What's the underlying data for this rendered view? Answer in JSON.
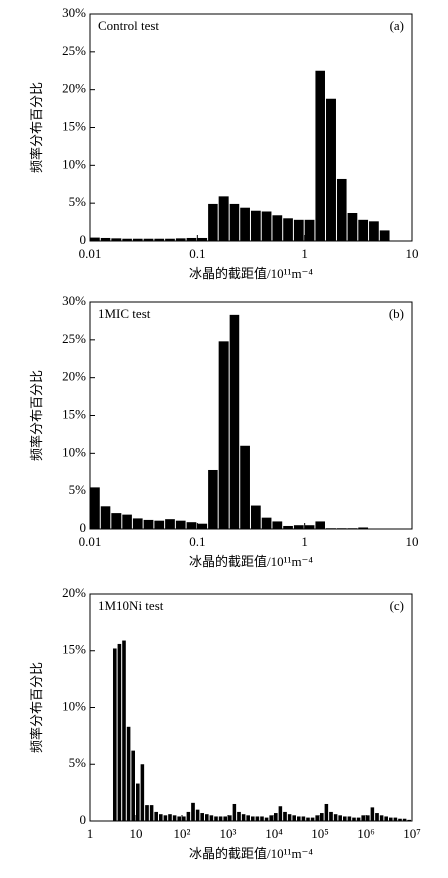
{
  "chart_data": [
    {
      "type": "histogram",
      "title": "Control test",
      "panel": "(a)",
      "xlabel": "冰晶的截距值/10¹¹m⁻⁴",
      "ylabel": "频率分布百分比",
      "color": "#000000",
      "xscale": "log",
      "bins": [
        0.01,
        0.0126,
        0.0158,
        0.02,
        0.0251,
        0.0316,
        0.0398,
        0.0501,
        0.0631,
        0.0794,
        0.1,
        0.126,
        0.158,
        0.2,
        0.251,
        0.316,
        0.398,
        0.501,
        0.631,
        0.794,
        1,
        1.26,
        1.58,
        2,
        2.51,
        3.16,
        3.98,
        5.01,
        6.31,
        7.94,
        10
      ],
      "values": [
        0.45,
        0.4,
        0.35,
        0.3,
        0.3,
        0.3,
        0.3,
        0.3,
        0.35,
        0.4,
        0.4,
        4.9,
        5.9,
        4.9,
        4.4,
        4.0,
        3.9,
        3.4,
        3.0,
        2.8,
        2.8,
        22.5,
        18.8,
        8.2,
        3.7,
        2.8,
        2.6,
        1.4,
        0,
        0
      ],
      "xlim": [
        0.01,
        10
      ],
      "xticks": [
        0.01,
        0.1,
        1,
        10
      ],
      "ylim": [
        0,
        30
      ],
      "yticks": [
        {
          "value": 0,
          "label": "0"
        },
        {
          "value": 5,
          "label": "5%"
        },
        {
          "value": 10,
          "label": "10%"
        },
        {
          "value": 15,
          "label": "15%"
        },
        {
          "value": 20,
          "label": "20%"
        },
        {
          "value": 25,
          "label": "25%"
        },
        {
          "value": 30,
          "label": "30%"
        }
      ]
    },
    {
      "type": "histogram",
      "title": "1MIC test",
      "panel": "(b)",
      "xlabel": "冰晶的截距值/10¹¹m⁻⁴",
      "ylabel": "频率分布百分比",
      "color": "#000000",
      "xscale": "log",
      "bins": [
        0.01,
        0.0126,
        0.0158,
        0.02,
        0.0251,
        0.0316,
        0.0398,
        0.0501,
        0.0631,
        0.0794,
        0.1,
        0.126,
        0.158,
        0.2,
        0.251,
        0.316,
        0.398,
        0.501,
        0.631,
        0.794,
        1,
        1.26,
        1.58,
        2,
        2.51,
        3.16,
        3.98,
        5.01,
        6.31,
        7.94,
        10
      ],
      "values": [
        5.5,
        3.0,
        2.1,
        1.9,
        1.4,
        1.2,
        1.1,
        1.3,
        1.1,
        0.9,
        0.7,
        7.8,
        24.8,
        28.3,
        11.0,
        3.1,
        1.5,
        1.0,
        0.4,
        0.5,
        0.5,
        1.0,
        0.1,
        0.1,
        0.1,
        0.2,
        0,
        0,
        0,
        0
      ],
      "xlim": [
        0.01,
        10
      ],
      "xticks": [
        0.01,
        0.1,
        1,
        10
      ],
      "ylim": [
        0,
        30
      ],
      "yticks": [
        {
          "value": 0,
          "label": "0"
        },
        {
          "value": 5,
          "label": "5%"
        },
        {
          "value": 10,
          "label": "10%"
        },
        {
          "value": 15,
          "label": "15%"
        },
        {
          "value": 20,
          "label": "20%"
        },
        {
          "value": 25,
          "label": "25%"
        },
        {
          "value": 30,
          "label": "30%"
        }
      ]
    },
    {
      "type": "histogram",
      "title": "1M10Ni test",
      "panel": "(c)",
      "xlabel": "冰晶的截距值/10¹¹m⁻⁴",
      "ylabel": "频率分布百分比",
      "color": "#000000",
      "xscale": "log",
      "bins": [
        1,
        1.26,
        1.58,
        2,
        2.51,
        3.16,
        3.98,
        5.01,
        6.31,
        7.94,
        10,
        12.6,
        15.8,
        20,
        25.1,
        31.6,
        39.8,
        50.1,
        63.1,
        79.4,
        100,
        126,
        158,
        200,
        251,
        316,
        398,
        501,
        631,
        794,
        1000,
        1260,
        1580,
        2000,
        2510,
        3160,
        3980,
        5010,
        6310,
        7940,
        10000,
        12600,
        15800,
        20000,
        25100,
        31600,
        39800,
        50100,
        63100,
        79400,
        100000,
        126000,
        158000,
        200000,
        251000,
        316000,
        398000,
        501000,
        631000,
        794000,
        1000000,
        1260000,
        1580000,
        2000000,
        2510000,
        3160000,
        3980000,
        5010000,
        6310000,
        7940000,
        10000000
      ],
      "values": [
        0,
        0,
        0,
        0,
        0,
        15.2,
        15.6,
        15.9,
        8.3,
        6.2,
        3.3,
        5.0,
        1.4,
        1.4,
        0.8,
        0.6,
        0.5,
        0.6,
        0.5,
        0.4,
        0.4,
        0.8,
        1.6,
        1.0,
        0.7,
        0.6,
        0.5,
        0.4,
        0.4,
        0.4,
        0.5,
        1.5,
        0.8,
        0.6,
        0.5,
        0.4,
        0.4,
        0.4,
        0.3,
        0.5,
        0.7,
        1.3,
        0.8,
        0.6,
        0.5,
        0.4,
        0.4,
        0.3,
        0.3,
        0.5,
        0.7,
        1.5,
        0.8,
        0.6,
        0.5,
        0.4,
        0.4,
        0.3,
        0.3,
        0.5,
        0.5,
        1.2,
        0.7,
        0.5,
        0.4,
        0.3,
        0.3,
        0.2,
        0.2,
        0.1
      ],
      "xlim": [
        1,
        10000000
      ],
      "xticks": [
        1,
        10,
        {
          "value": 100,
          "label": "10²"
        },
        {
          "value": 1000,
          "label": "10³"
        },
        {
          "value": 10000,
          "label": "10⁴"
        },
        {
          "value": 100000,
          "label": "10⁵"
        },
        {
          "value": 1000000,
          "label": "10⁶"
        },
        {
          "value": 10000000,
          "label": "10⁷"
        }
      ],
      "ylim": [
        0,
        20
      ],
      "yticks": [
        {
          "value": 0,
          "label": "0"
        },
        {
          "value": 5,
          "label": "5%"
        },
        {
          "value": 10,
          "label": "10%"
        },
        {
          "value": 15,
          "label": "15%"
        },
        {
          "value": 20,
          "label": "20%"
        }
      ]
    }
  ]
}
